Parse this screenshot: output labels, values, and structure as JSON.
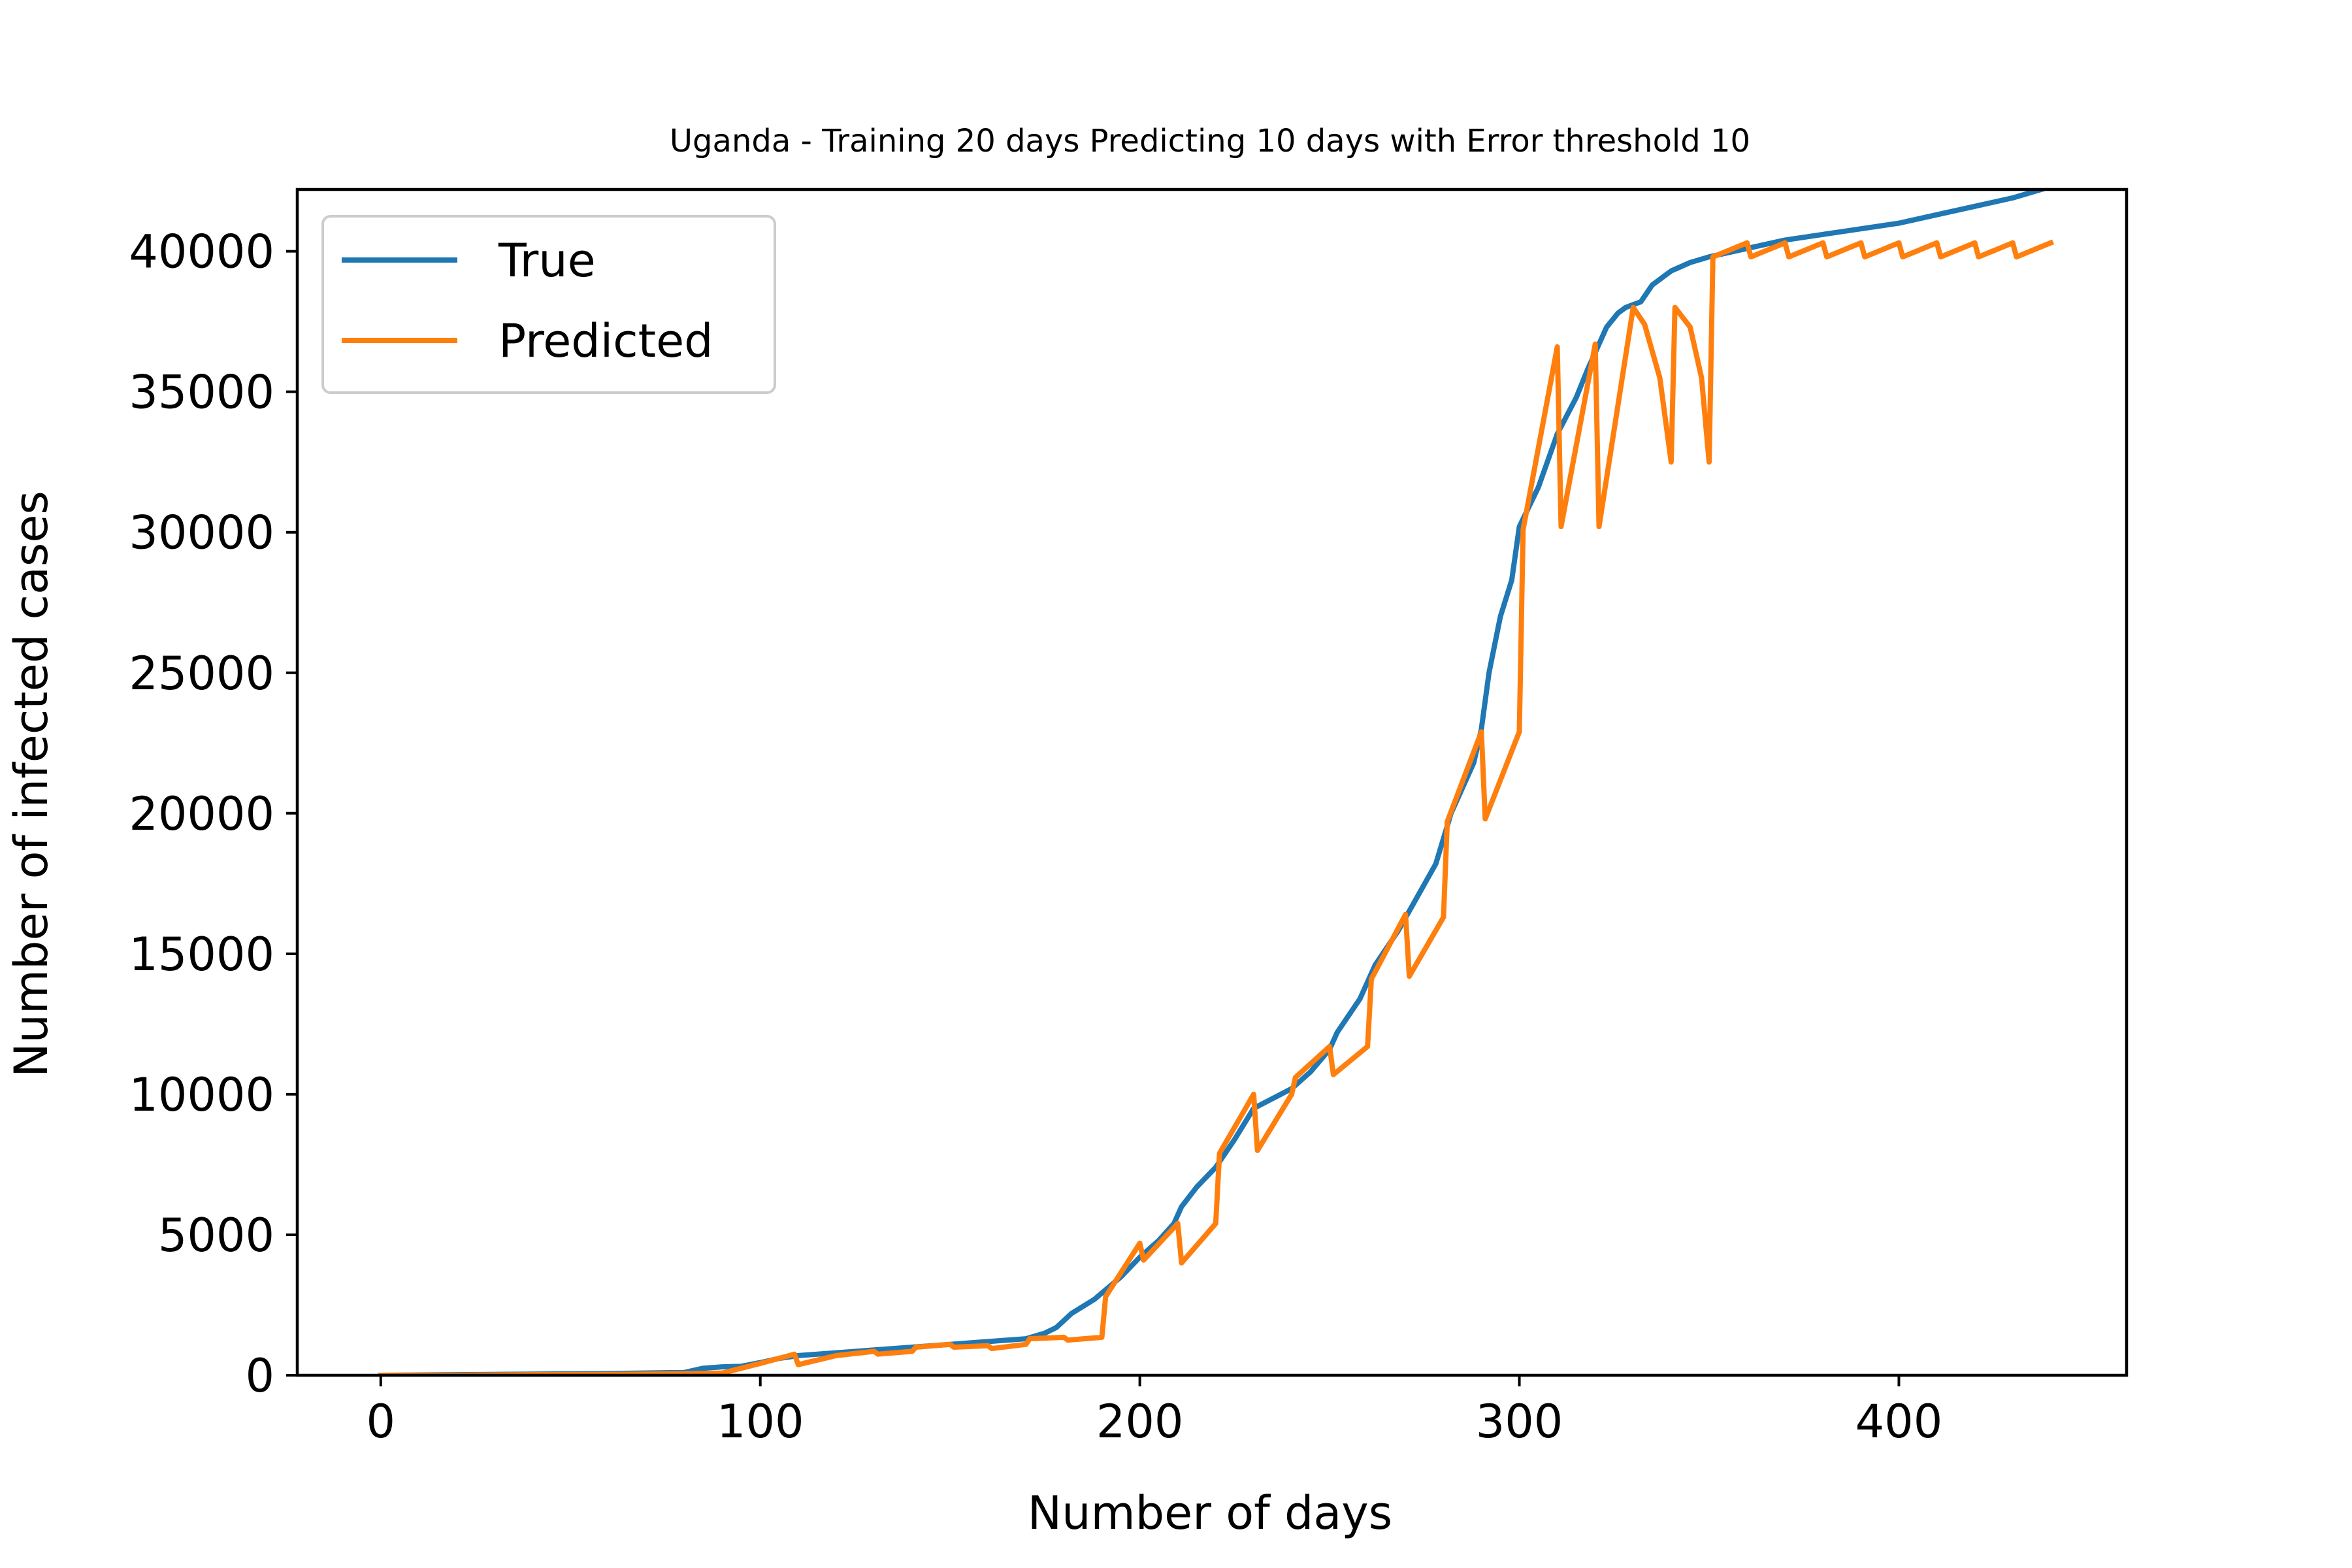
{
  "chart_data": {
    "type": "line",
    "title": "Uganda - Training 20 days Predicting 10 days with Error threshold 10",
    "xlabel": "Number of days",
    "ylabel": "Number of infected cases",
    "xlim": [
      -22,
      460
    ],
    "ylim": [
      0,
      42200
    ],
    "x_ticks": [
      0,
      100,
      200,
      300,
      400
    ],
    "x_tick_labels": [
      "0",
      "100",
      "200",
      "300",
      "400"
    ],
    "y_ticks": [
      0,
      5000,
      10000,
      15000,
      20000,
      25000,
      30000,
      35000,
      40000
    ],
    "y_tick_labels": [
      "0",
      "5000",
      "10000",
      "15000",
      "20000",
      "25000",
      "30000",
      "35000",
      "40000"
    ],
    "grid": false,
    "legend_position": "upper-left",
    "series": [
      {
        "name": "True",
        "color": "#1f77b4",
        "points": [
          [
            0,
            0
          ],
          [
            20,
            20
          ],
          [
            40,
            40
          ],
          [
            60,
            60
          ],
          [
            80,
            100
          ],
          [
            85,
            250
          ],
          [
            90,
            300
          ],
          [
            95,
            320
          ],
          [
            100,
            450
          ],
          [
            105,
            600
          ],
          [
            110,
            700
          ],
          [
            120,
            800
          ],
          [
            130,
            900
          ],
          [
            140,
            1000
          ],
          [
            150,
            1100
          ],
          [
            160,
            1200
          ],
          [
            170,
            1300
          ],
          [
            175,
            1500
          ],
          [
            178,
            1700
          ],
          [
            182,
            2200
          ],
          [
            188,
            2700
          ],
          [
            195,
            3500
          ],
          [
            200,
            4200
          ],
          [
            205,
            4800
          ],
          [
            209,
            5400
          ],
          [
            211,
            6000
          ],
          [
            215,
            6700
          ],
          [
            220,
            7400
          ],
          [
            225,
            8400
          ],
          [
            230,
            9500
          ],
          [
            240,
            10200
          ],
          [
            245,
            10800
          ],
          [
            250,
            11600
          ],
          [
            252,
            12200
          ],
          [
            258,
            13400
          ],
          [
            262,
            14600
          ],
          [
            268,
            15800
          ],
          [
            273,
            17000
          ],
          [
            278,
            18200
          ],
          [
            282,
            20000
          ],
          [
            288,
            21800
          ],
          [
            290,
            23000
          ],
          [
            292,
            25000
          ],
          [
            295,
            27000
          ],
          [
            298,
            28300
          ],
          [
            300,
            30200
          ],
          [
            305,
            31600
          ],
          [
            310,
            33500
          ],
          [
            315,
            34800
          ],
          [
            318,
            35800
          ],
          [
            320,
            36400
          ],
          [
            323,
            37300
          ],
          [
            326,
            37800
          ],
          [
            328,
            38000
          ],
          [
            330,
            38100
          ],
          [
            332,
            38200
          ],
          [
            335,
            38800
          ],
          [
            340,
            39300
          ],
          [
            345,
            39600
          ],
          [
            350,
            39800
          ],
          [
            360,
            40100
          ],
          [
            370,
            40400
          ],
          [
            380,
            40600
          ],
          [
            390,
            40800
          ],
          [
            400,
            41000
          ],
          [
            410,
            41300
          ],
          [
            420,
            41600
          ],
          [
            430,
            41900
          ],
          [
            440,
            42300
          ]
        ]
      },
      {
        "name": "Predicted",
        "color": "#ff7f0e",
        "points": [
          [
            0,
            0
          ],
          [
            20,
            0
          ],
          [
            40,
            20
          ],
          [
            60,
            30
          ],
          [
            80,
            50
          ],
          [
            90,
            80
          ],
          [
            100,
            420
          ],
          [
            109,
            750
          ],
          [
            110,
            380
          ],
          [
            120,
            700
          ],
          [
            130,
            850
          ],
          [
            131,
            750
          ],
          [
            140,
            850
          ],
          [
            141,
            1000
          ],
          [
            150,
            1100
          ],
          [
            151,
            1000
          ],
          [
            160,
            1050
          ],
          [
            161,
            950
          ],
          [
            170,
            1100
          ],
          [
            171,
            1300
          ],
          [
            180,
            1350
          ],
          [
            181,
            1250
          ],
          [
            190,
            1350
          ],
          [
            191,
            2800
          ],
          [
            200,
            4700
          ],
          [
            201,
            4100
          ],
          [
            210,
            5400
          ],
          [
            211,
            4000
          ],
          [
            220,
            5400
          ],
          [
            221,
            7900
          ],
          [
            230,
            10000
          ],
          [
            231,
            8000
          ],
          [
            240,
            10000
          ],
          [
            241,
            10600
          ],
          [
            250,
            11700
          ],
          [
            251,
            10700
          ],
          [
            260,
            11700
          ],
          [
            261,
            14100
          ],
          [
            270,
            16400
          ],
          [
            271,
            14200
          ],
          [
            280,
            16300
          ],
          [
            281,
            19700
          ],
          [
            290,
            22900
          ],
          [
            291,
            19800
          ],
          [
            300,
            22900
          ],
          [
            301,
            30100
          ],
          [
            310,
            36600
          ],
          [
            311,
            30200
          ],
          [
            320,
            36700
          ],
          [
            321,
            30200
          ],
          [
            330,
            38000
          ],
          [
            333,
            37400
          ],
          [
            337,
            35500
          ],
          [
            340,
            32500
          ],
          [
            341,
            38000
          ],
          [
            345,
            37300
          ],
          [
            348,
            35500
          ],
          [
            350,
            32500
          ],
          [
            351,
            39800
          ],
          [
            360,
            40300
          ],
          [
            361,
            39800
          ],
          [
            370,
            40300
          ],
          [
            371,
            39800
          ],
          [
            380,
            40300
          ],
          [
            381,
            39800
          ],
          [
            390,
            40300
          ],
          [
            391,
            39800
          ],
          [
            400,
            40300
          ],
          [
            401,
            39800
          ],
          [
            410,
            40300
          ],
          [
            411,
            39800
          ],
          [
            420,
            40300
          ],
          [
            421,
            39800
          ],
          [
            430,
            40300
          ],
          [
            431,
            39800
          ],
          [
            440,
            40300
          ]
        ]
      }
    ]
  }
}
